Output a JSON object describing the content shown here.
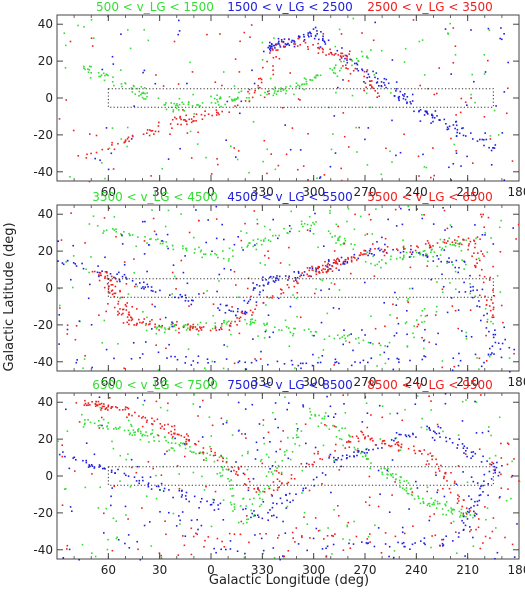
{
  "figure": {
    "xlabel": "Galactic Longitude (deg)",
    "ylabel": "Galactic Latitude (deg)"
  },
  "chart_data": [
    {
      "type": "scatter",
      "xlabel": "Galactic Longitude (deg)",
      "ylabel": "Galactic Latitude (deg)",
      "x_direction": "decreasing (longitude wraps 90 → 0 → 180)",
      "x_ticks": [
        "60",
        "30",
        "0",
        "330",
        "300",
        "270",
        "240",
        "210",
        "180"
      ],
      "y_ticks": [
        "40",
        "20",
        "0",
        "-20",
        "-40"
      ],
      "ylim": [
        -45,
        45
      ],
      "zone_of_avoidance_box": {
        "lon_from": 60,
        "lon_to": 195,
        "lat_from": -5,
        "lat_to": 5
      },
      "series": [
        {
          "name": "500 < v_LG < 1500",
          "color": "#33dd33"
        },
        {
          "name": "1500 < v_LG < 2500",
          "color": "#2020dd"
        },
        {
          "name": "2500 < v_LG < 3500",
          "color": "#ee2020"
        }
      ]
    },
    {
      "type": "scatter",
      "xlabel": "Galactic Longitude (deg)",
      "ylabel": "Galactic Latitude (deg)",
      "x_ticks": [
        "60",
        "30",
        "0",
        "330",
        "300",
        "270",
        "240",
        "210",
        "180"
      ],
      "y_ticks": [
        "40",
        "20",
        "0",
        "-20",
        "-40"
      ],
      "ylim": [
        -45,
        45
      ],
      "series": [
        {
          "name": "3500 < v_LG < 4500",
          "color": "#33dd33"
        },
        {
          "name": "4500 < v_LG < 5500",
          "color": "#2020dd"
        },
        {
          "name": "5500 < v_LG < 6500",
          "color": "#ee2020"
        }
      ]
    },
    {
      "type": "scatter",
      "xlabel": "Galactic Longitude (deg)",
      "ylabel": "Galactic Latitude (deg)",
      "x_ticks": [
        "60",
        "30",
        "0",
        "330",
        "300",
        "270",
        "240",
        "210",
        "180"
      ],
      "y_ticks": [
        "40",
        "20",
        "0",
        "-20",
        "-40"
      ],
      "ylim": [
        -45,
        45
      ],
      "series": [
        {
          "name": "6500 < v_LG < 7500",
          "color": "#33dd33"
        },
        {
          "name": "7500 < v_LG < 8500",
          "color": "#2020dd"
        },
        {
          "name": "8500 < v_LG < 9500",
          "color": "#ee2020"
        }
      ]
    }
  ]
}
